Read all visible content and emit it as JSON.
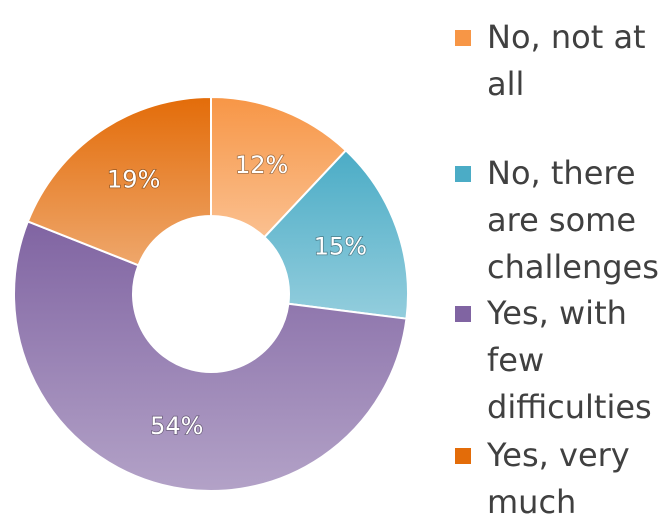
{
  "chart_data": {
    "type": "pie",
    "categories": [
      "No, not at all",
      "No, there are some challenges",
      "Yes, with few difficulties",
      "Yes, very much"
    ],
    "values": [
      12,
      15,
      54,
      19
    ],
    "value_labels": [
      "12%",
      "15%",
      "54%",
      "19%"
    ],
    "colors": [
      "#f79646",
      "#4bacc6",
      "#8064a2",
      "#e36c09"
    ],
    "legend": "right"
  }
}
